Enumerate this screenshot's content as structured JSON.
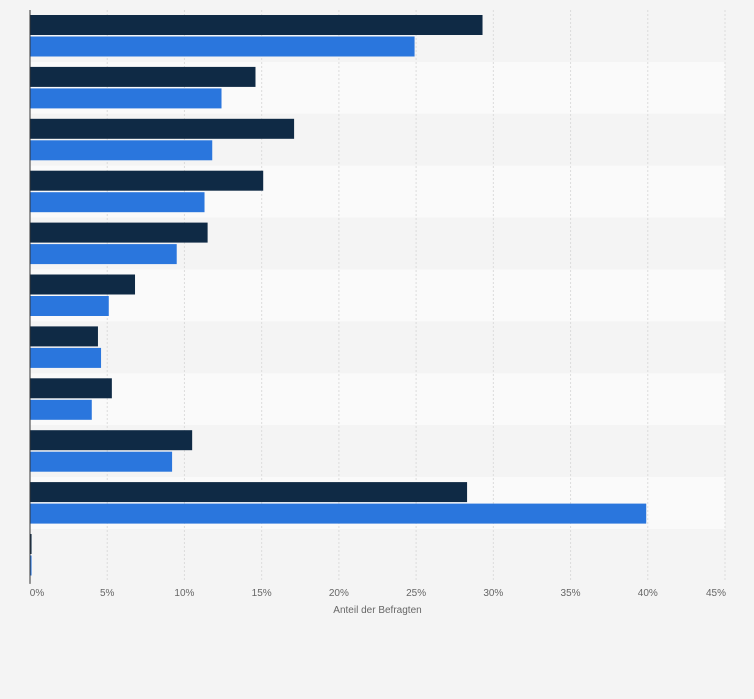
{
  "chart_data": {
    "type": "bar",
    "orientation": "horizontal",
    "title": "",
    "xlabel": "Anteil der Befragten",
    "ylabel": "",
    "xlim": [
      0,
      45
    ],
    "x_ticks": [
      0,
      5,
      10,
      15,
      20,
      25,
      30,
      35,
      40,
      45
    ],
    "x_tick_labels": [
      "0%",
      "5%",
      "10%",
      "15%",
      "20%",
      "25%",
      "30%",
      "35%",
      "40%",
      "45%"
    ],
    "categories": [
      "",
      "",
      "",
      "",
      "",
      "",
      "",
      "",
      "",
      "",
      ""
    ],
    "series": [
      {
        "color": "#0f2a45",
        "values": [
          29.3,
          14.6,
          17.1,
          15.1,
          11.5,
          6.8,
          4.4,
          5.3,
          10.5,
          28.3,
          0.1
        ]
      },
      {
        "color": "#2a76dd",
        "values": [
          24.9,
          12.4,
          11.8,
          11.3,
          9.5,
          5.1,
          4.6,
          4.0,
          9.2,
          39.9,
          0.1
        ]
      }
    ],
    "grid": true,
    "legend": "none"
  }
}
